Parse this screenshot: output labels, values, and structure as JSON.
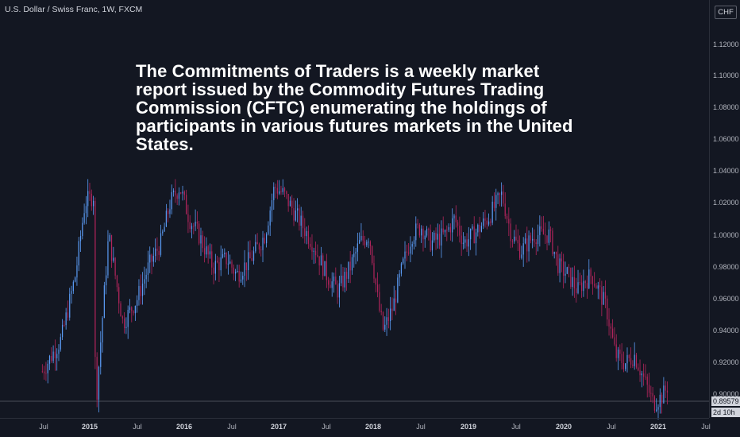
{
  "symbol_title": "U.S. Dollar / Swiss Franc, 1W, FXCM",
  "annotation": "The Commitments of Traders is a weekly market report issued by the Commodity Futures Trading Commission (CFTC) enumerating the holdings of participants in various futures markets in the United States.",
  "currency_button": "CHF",
  "last_price": "0.89579",
  "countdown": "2d 10h",
  "colors": {
    "background": "#131722",
    "up": "#5b9cf6",
    "down": "#b2255c",
    "text": "#d1d4dc"
  },
  "chart_data": {
    "type": "candlestick",
    "ylim": [
      0.876,
      1.136
    ],
    "y_ticks": [
      "1.12000",
      "1.10000",
      "1.08000",
      "1.06000",
      "1.04000",
      "1.02000",
      "1.00000",
      "0.98000",
      "0.96000",
      "0.94000",
      "0.92000",
      "0.90000"
    ],
    "x_ticks": [
      {
        "label": "Jul",
        "bold": false
      },
      {
        "label": "2015",
        "bold": true
      },
      {
        "label": "Jul",
        "bold": false
      },
      {
        "label": "2016",
        "bold": true
      },
      {
        "label": "Jul",
        "bold": false
      },
      {
        "label": "2017",
        "bold": true
      },
      {
        "label": "Jul",
        "bold": false
      },
      {
        "label": "2018",
        "bold": true
      },
      {
        "label": "Jul",
        "bold": false
      },
      {
        "label": "2019",
        "bold": true
      },
      {
        "label": "Jul",
        "bold": false
      },
      {
        "label": "2020",
        "bold": true
      },
      {
        "label": "Jul",
        "bold": false
      },
      {
        "label": "2021",
        "bold": true
      },
      {
        "label": "Jul",
        "bold": false
      }
    ],
    "close_path": [
      [
        2014.5,
        0.905
      ],
      [
        2014.7,
        0.925
      ],
      [
        2014.85,
        0.965
      ],
      [
        2014.95,
        1.01
      ],
      [
        2015.05,
        1.015
      ],
      [
        2015.06,
        0.88
      ],
      [
        2015.2,
        0.99
      ],
      [
        2015.35,
        0.935
      ],
      [
        2015.5,
        0.95
      ],
      [
        2015.62,
        0.97
      ],
      [
        2015.75,
        0.985
      ],
      [
        2015.85,
        1.01
      ],
      [
        2015.95,
        1.02
      ],
      [
        2016.05,
        1.0
      ],
      [
        2016.15,
        0.99
      ],
      [
        2016.3,
        0.97
      ],
      [
        2016.45,
        0.975
      ],
      [
        2016.55,
        0.965
      ],
      [
        2016.7,
        0.975
      ],
      [
        2016.85,
        0.99
      ],
      [
        2016.95,
        1.02
      ],
      [
        2017.05,
        1.015
      ],
      [
        2017.2,
        1.0
      ],
      [
        2017.35,
        0.985
      ],
      [
        2017.5,
        0.965
      ],
      [
        2017.62,
        0.955
      ],
      [
        2017.75,
        0.97
      ],
      [
        2017.85,
        0.985
      ],
      [
        2017.95,
        0.99
      ],
      [
        2018.05,
        0.945
      ],
      [
        2018.1,
        0.93
      ],
      [
        2018.2,
        0.945
      ],
      [
        2018.3,
        0.97
      ],
      [
        2018.4,
        0.99
      ],
      [
        2018.5,
        0.995
      ],
      [
        2018.6,
        0.985
      ],
      [
        2018.75,
        0.99
      ],
      [
        2018.85,
        1.0
      ],
      [
        2018.95,
        0.985
      ],
      [
        2019.05,
        0.99
      ],
      [
        2019.2,
        1.0
      ],
      [
        2019.35,
        1.015
      ],
      [
        2019.45,
        0.99
      ],
      [
        2019.55,
        0.98
      ],
      [
        2019.7,
        0.99
      ],
      [
        2019.85,
        0.99
      ],
      [
        2019.95,
        0.97
      ],
      [
        2020.05,
        0.965
      ],
      [
        2020.15,
        0.955
      ],
      [
        2020.2,
        0.96
      ],
      [
        2020.3,
        0.965
      ],
      [
        2020.45,
        0.945
      ],
      [
        2020.55,
        0.915
      ],
      [
        2020.65,
        0.91
      ],
      [
        2020.75,
        0.915
      ],
      [
        2020.85,
        0.9
      ],
      [
        2020.95,
        0.885
      ],
      [
        2021.05,
        0.89
      ],
      [
        2021.1,
        0.896
      ]
    ]
  }
}
